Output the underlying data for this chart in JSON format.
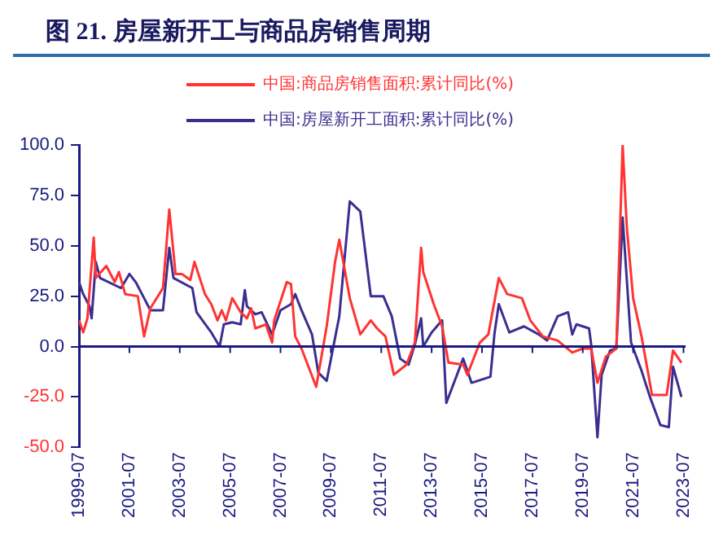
{
  "chart_data": {
    "type": "line",
    "title": "图 21. 房屋新开工与商品房销售周期",
    "xlim": [
      "1999-07",
      "2023-08"
    ],
    "xticks": [
      "1999-07",
      "2001-07",
      "2003-07",
      "2005-07",
      "2007-07",
      "2009-07",
      "2011-07",
      "2013-07",
      "2015-07",
      "2017-07",
      "2019-07",
      "2021-07",
      "2023-07"
    ],
    "ylim": [
      -50,
      100
    ],
    "yticks": [
      {
        "value": -50,
        "label": "-50.0"
      },
      {
        "value": -25,
        "label": "-25.0"
      },
      {
        "value": 0,
        "label": "0.0"
      },
      {
        "value": 25,
        "label": "25.0"
      },
      {
        "value": 50,
        "label": "50.0"
      },
      {
        "value": 75,
        "label": "75.0"
      },
      {
        "value": 100,
        "label": "100.0"
      }
    ],
    "ref_lines": [
      {
        "axis": "y",
        "value": 0,
        "color": "#1a1a80"
      }
    ],
    "grid": false,
    "legend": "top",
    "marker": "none",
    "line_style": "solid",
    "series": [
      {
        "name": "中国:商品房销售面积:累计同比(%)",
        "color": "#ff3333",
        "x": [
          "1999-07",
          "1999-09",
          "1999-11",
          "2000-02",
          "2000-03",
          "2000-08",
          "2000-12",
          "2001-02",
          "2001-05",
          "2001-11",
          "2002-02",
          "2002-05",
          "2002-11",
          "2003-02",
          "2003-05",
          "2003-08",
          "2003-12",
          "2004-02",
          "2004-07",
          "2004-10",
          "2005-01",
          "2005-03",
          "2005-05",
          "2005-08",
          "2005-12",
          "2006-03",
          "2006-05",
          "2006-07",
          "2006-12",
          "2007-03",
          "2007-04",
          "2007-10",
          "2007-12",
          "2008-02",
          "2008-05",
          "2008-12",
          "2009-05",
          "2009-09",
          "2009-11",
          "2010-04",
          "2010-09",
          "2011-02",
          "2011-05",
          "2011-09",
          "2012-01",
          "2012-07",
          "2012-11",
          "2013-02",
          "2013-03",
          "2013-08",
          "2013-12",
          "2014-03",
          "2014-10",
          "2014-12",
          "2015-06",
          "2015-10",
          "2016-03",
          "2016-07",
          "2017-02",
          "2017-06",
          "2017-12",
          "2018-07",
          "2019-02",
          "2019-07",
          "2019-11",
          "2020-02",
          "2020-06",
          "2020-11",
          "2021-02",
          "2021-04",
          "2021-07",
          "2021-11",
          "2022-04",
          "2022-11",
          "2023-02",
          "2023-06"
        ],
        "values": [
          13,
          7,
          14,
          54,
          34,
          40,
          32,
          37,
          26,
          25,
          5,
          19,
          29,
          68,
          36,
          36,
          33,
          42,
          26,
          21,
          13,
          18,
          13,
          24,
          17,
          14,
          19,
          9,
          11,
          2,
          13,
          32,
          31,
          5,
          -1,
          -20,
          10,
          42,
          53,
          24,
          6,
          13,
          9,
          5,
          -14,
          -9,
          2,
          49,
          37,
          21,
          10,
          -8,
          -9,
          -14,
          2,
          6,
          34,
          26,
          24,
          13,
          5,
          3,
          -3,
          -1,
          -1,
          -18,
          -5,
          -1,
          100,
          59,
          24,
          5,
          -24,
          -24,
          -2,
          -8
        ]
      },
      {
        "name": "中国:房屋新开工面积:累计同比(%)",
        "color": "#3a2f8f",
        "x": [
          "1999-07",
          "1999-09",
          "1999-12",
          "2000-01",
          "2000-03",
          "2000-05",
          "2001-03",
          "2001-07",
          "2001-10",
          "2002-01",
          "2002-05",
          "2002-11",
          "2003-02",
          "2003-04",
          "2004-01",
          "2004-03",
          "2004-10",
          "2005-02",
          "2005-04",
          "2005-08",
          "2005-12",
          "2006-02",
          "2006-03",
          "2006-07",
          "2006-10",
          "2007-03",
          "2007-07",
          "2007-12",
          "2008-02",
          "2008-05",
          "2008-10",
          "2009-01",
          "2009-05",
          "2009-11",
          "2010-04",
          "2010-09",
          "2011-02",
          "2011-08",
          "2011-12",
          "2012-04",
          "2012-08",
          "2012-11",
          "2013-02",
          "2013-03",
          "2013-07",
          "2013-12",
          "2014-02",
          "2014-10",
          "2015-02",
          "2015-08",
          "2015-11",
          "2016-01",
          "2016-03",
          "2016-08",
          "2017-03",
          "2017-10",
          "2018-02",
          "2018-07",
          "2018-12",
          "2019-02",
          "2019-04",
          "2019-10",
          "2019-11",
          "2020-02",
          "2020-04",
          "2020-08",
          "2020-11",
          "2021-02",
          "2021-06",
          "2021-11",
          "2022-03",
          "2022-08",
          "2022-12",
          "2023-02",
          "2023-06"
        ],
        "values": [
          32,
          26,
          20,
          14,
          42,
          34,
          29,
          36,
          32,
          26,
          18,
          18,
          49,
          34,
          29,
          17,
          7,
          0,
          11,
          12,
          11,
          28,
          20,
          16,
          17,
          6,
          18,
          21,
          26,
          18,
          6,
          -13,
          -17,
          15,
          72,
          67,
          25,
          25,
          15,
          -6,
          -9,
          1,
          14,
          0,
          7,
          13,
          -28,
          -6,
          -18,
          -16,
          -15,
          7,
          21,
          7,
          10,
          6,
          3,
          15,
          17,
          6,
          11,
          9,
          1,
          -45,
          -14,
          -2,
          -1,
          64,
          2,
          -12,
          -25,
          -39,
          -40,
          -10,
          -25
        ]
      }
    ]
  }
}
